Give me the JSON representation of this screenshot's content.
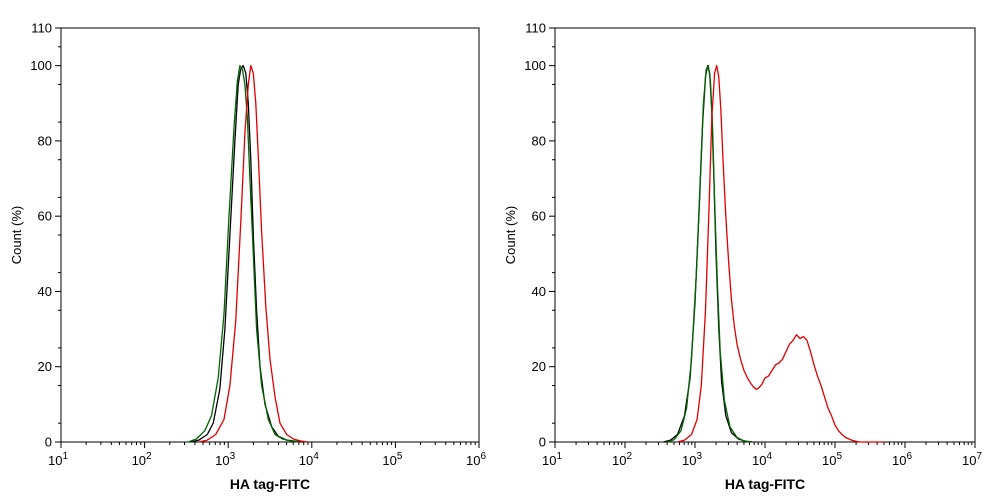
{
  "chart_data": [
    {
      "type": "line",
      "xlabel": "HA tag-FITC",
      "ylabel": "Count  (%)",
      "x_scale": "log10",
      "xlim_exp": [
        1,
        6
      ],
      "ylim": [
        0,
        110
      ],
      "y_ticks": [
        0,
        20,
        40,
        60,
        80,
        100,
        110
      ],
      "x_tick_base": "10",
      "x_tick_exponents": [
        "1",
        "2",
        "3",
        "4",
        "5",
        "6"
      ],
      "grid": false,
      "series": [
        {
          "color": "#000000",
          "x": [
            2.55,
            2.65,
            2.75,
            2.82,
            2.9,
            2.96,
            3.02,
            3.08,
            3.12,
            3.15,
            3.18,
            3.21,
            3.24,
            3.27,
            3.3,
            3.34,
            3.38,
            3.44,
            3.52,
            3.6,
            3.7,
            3.8,
            3.9
          ],
          "y": [
            0,
            0.5,
            2,
            5,
            14,
            30,
            55,
            80,
            95,
            99,
            100,
            98,
            90,
            75,
            55,
            35,
            20,
            10,
            4,
            1.5,
            0.5,
            0.2,
            0
          ]
        },
        {
          "color": "#006400",
          "x": [
            2.52,
            2.62,
            2.72,
            2.8,
            2.88,
            2.95,
            3.01,
            3.07,
            3.11,
            3.14,
            3.17,
            3.2,
            3.23,
            3.26,
            3.3,
            3.34,
            3.4,
            3.48,
            3.56,
            3.65,
            3.75,
            3.85
          ],
          "y": [
            0,
            0.8,
            3,
            7,
            17,
            34,
            60,
            84,
            96,
            100,
            99,
            95,
            86,
            70,
            50,
            30,
            15,
            6,
            2,
            0.8,
            0.3,
            0
          ]
        },
        {
          "color": "#e00000",
          "x": [
            2.65,
            2.75,
            2.85,
            2.95,
            3.02,
            3.09,
            3.15,
            3.2,
            3.24,
            3.27,
            3.3,
            3.33,
            3.36,
            3.4,
            3.45,
            3.5,
            3.56,
            3.62,
            3.7,
            3.78,
            3.86,
            3.95
          ],
          "y": [
            0,
            0.5,
            2,
            6,
            15,
            32,
            58,
            82,
            95,
            100,
            98,
            90,
            76,
            56,
            36,
            22,
            12,
            5,
            2,
            0.8,
            0.3,
            0
          ]
        }
      ]
    },
    {
      "type": "line",
      "xlabel": "HA tag-FITC",
      "ylabel": "Count  (%)",
      "x_scale": "log10",
      "xlim_exp": [
        1,
        7
      ],
      "ylim": [
        0,
        110
      ],
      "y_ticks": [
        0,
        20,
        40,
        60,
        80,
        100,
        110
      ],
      "x_tick_base": "10",
      "x_tick_exponents": [
        "1",
        "2",
        "3",
        "4",
        "5",
        "6",
        "7"
      ],
      "grid": false,
      "series": [
        {
          "color": "#000000",
          "x": [
            2.55,
            2.65,
            2.75,
            2.85,
            2.93,
            3.0,
            3.06,
            3.11,
            3.15,
            3.18,
            3.21,
            3.24,
            3.27,
            3.3,
            3.34,
            3.38,
            3.44,
            3.52,
            3.62,
            3.72,
            3.82
          ],
          "y": [
            0,
            0.5,
            2,
            7,
            17,
            37,
            62,
            85,
            97,
            100,
            98,
            88,
            70,
            50,
            30,
            16,
            7,
            2.5,
            0.8,
            0.2,
            0
          ]
        },
        {
          "color": "#006400",
          "x": [
            2.6,
            2.7,
            2.8,
            2.88,
            2.95,
            3.02,
            3.08,
            3.12,
            3.16,
            3.19,
            3.22,
            3.25,
            3.28,
            3.32,
            3.36,
            3.42,
            3.5,
            3.6,
            3.7,
            3.8
          ],
          "y": [
            0,
            0.6,
            3,
            9,
            22,
            45,
            72,
            90,
            99,
            100,
            96,
            84,
            64,
            42,
            24,
            11,
            4,
            1.2,
            0.3,
            0
          ]
        },
        {
          "color": "#e00000",
          "x": [
            2.75,
            2.85,
            2.95,
            3.03,
            3.09,
            3.15,
            3.2,
            3.24,
            3.28,
            3.31,
            3.34,
            3.37,
            3.4,
            3.44,
            3.48,
            3.52,
            3.56,
            3.6,
            3.65,
            3.7,
            3.75,
            3.8,
            3.84,
            3.88,
            3.92,
            3.96,
            4.0,
            4.05,
            4.1,
            4.15,
            4.2,
            4.25,
            4.3,
            4.35,
            4.4,
            4.45,
            4.5,
            4.55,
            4.6,
            4.65,
            4.7,
            4.75,
            4.8,
            4.85,
            4.9,
            4.95,
            5.0,
            5.05,
            5.1,
            5.15,
            5.2,
            5.25,
            5.3,
            5.35,
            5.4,
            5.45,
            5.5,
            5.55,
            5.6,
            5.65,
            5.7
          ],
          "y": [
            0,
            0.5,
            2,
            6,
            15,
            35,
            62,
            86,
            98,
            100,
            97,
            88,
            75,
            60,
            48,
            38,
            31,
            26,
            22,
            19,
            17,
            15.5,
            14.5,
            14,
            14.5,
            15.5,
            17,
            17.5,
            19,
            20.5,
            21,
            22,
            24,
            26,
            27,
            28.5,
            27.5,
            28,
            27,
            24,
            20.5,
            17.5,
            15,
            12,
            9,
            7,
            4.5,
            3,
            2,
            1.2,
            0.8,
            0.4,
            0.2,
            0,
            0,
            0,
            0,
            0,
            0,
            0,
            0
          ]
        }
      ]
    }
  ]
}
